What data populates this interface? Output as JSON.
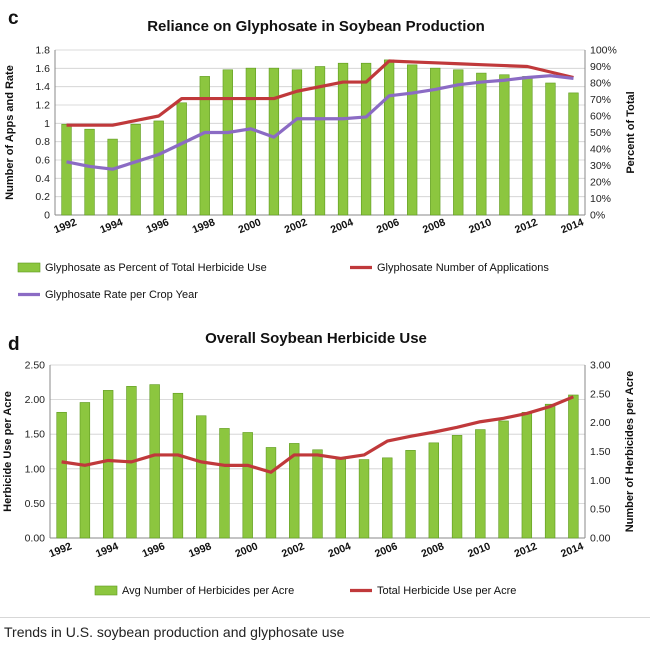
{
  "caption": "Trends in U.S. soybean production and glyphosate use",
  "colors": {
    "bar": "#8cc63f",
    "bar_edge": "#5e9a1e",
    "red_line": "#c0393b",
    "purple_line": "#8b6bc4",
    "grid": "#cfcfcf"
  },
  "chart_data": [
    {
      "panel_letter": "c",
      "type": "bar",
      "title": "Reliance on Glyphosate in Soybean Production",
      "ylabel": "Number of Apps and Rate",
      "y2label": "Percent  of Total",
      "ylim": [
        0,
        1.8
      ],
      "y2lim": [
        0,
        100
      ],
      "yticks": [
        "0",
        "0.2",
        "0.4",
        "0.6",
        "0.8",
        "1",
        "1.2",
        "1.4",
        "1.6",
        "1.8"
      ],
      "y2ticks": [
        "0%",
        "10%",
        "20%",
        "30%",
        "40%",
        "50%",
        "60%",
        "70%",
        "80%",
        "90%",
        "100%"
      ],
      "xticks": [
        "1992",
        "1994",
        "1996",
        "1998",
        "2000",
        "2002",
        "2004",
        "2006",
        "2008",
        "2010",
        "2012",
        "2014"
      ],
      "x": [
        1992,
        1993,
        1994,
        1995,
        1996,
        1997,
        1998,
        1999,
        2000,
        2001,
        2002,
        2003,
        2004,
        2005,
        2006,
        2007,
        2008,
        2009,
        2010,
        2011,
        2012,
        2013,
        2014
      ],
      "grid": true,
      "legend_position": "bottom",
      "series": [
        {
          "name": "Glyphosate as Percent of Total Herbicide Use",
          "kind": "bar",
          "axis": "right",
          "values": [
            55,
            52,
            46,
            55,
            57,
            68,
            84,
            88,
            89,
            89,
            88,
            90,
            92,
            92,
            94,
            91,
            89,
            88,
            86,
            85,
            84,
            80,
            74
          ]
        },
        {
          "name": "Glyphosate Number of Applications",
          "kind": "line",
          "axis": "left",
          "values": [
            0.98,
            0.98,
            0.98,
            1.03,
            1.08,
            1.27,
            1.27,
            1.27,
            1.27,
            1.27,
            1.35,
            1.4,
            1.45,
            1.45,
            1.68,
            1.67,
            1.66,
            1.65,
            1.64,
            1.63,
            1.62,
            1.56,
            1.5
          ]
        },
        {
          "name": "Glyphosate Rate per Crop Year",
          "kind": "line",
          "axis": "left",
          "values": [
            0.58,
            0.53,
            0.5,
            0.58,
            0.66,
            0.78,
            0.9,
            0.9,
            0.94,
            0.85,
            1.05,
            1.05,
            1.05,
            1.07,
            1.3,
            1.33,
            1.37,
            1.42,
            1.45,
            1.47,
            1.5,
            1.52,
            1.49
          ]
        }
      ]
    },
    {
      "panel_letter": "d",
      "type": "bar",
      "title": "Overall Soybean Herbicide Use",
      "ylabel": "Herbicide Use per Acre",
      "y2label": "Number of Herbicides per Acre",
      "ylim": [
        0,
        2.5
      ],
      "y2lim": [
        0,
        3.0
      ],
      "yticks": [
        "0.00",
        "0.50",
        "1.00",
        "1.50",
        "2.00",
        "2.50"
      ],
      "y2ticks": [
        "0.00",
        "0.50",
        "1.00",
        "1.50",
        "2.00",
        "2.50",
        "3.00"
      ],
      "xticks": [
        "1992",
        "1994",
        "1996",
        "1998",
        "2000",
        "2002",
        "2004",
        "2006",
        "2008",
        "2010",
        "2012",
        "2014"
      ],
      "x": [
        1992,
        1993,
        1994,
        1995,
        1996,
        1997,
        1998,
        1999,
        2000,
        2001,
        2002,
        2003,
        2004,
        2005,
        2006,
        2007,
        2008,
        2009,
        2010,
        2011,
        2012,
        2013,
        2014
      ],
      "grid": true,
      "legend_position": "bottom",
      "series": [
        {
          "name": "Avg Number of Herbicides per Acre",
          "kind": "bar",
          "axis": "right",
          "values": [
            2.18,
            2.35,
            2.56,
            2.63,
            2.66,
            2.51,
            2.12,
            1.9,
            1.83,
            1.57,
            1.64,
            1.53,
            1.38,
            1.36,
            1.39,
            1.52,
            1.65,
            1.78,
            1.88,
            2.03,
            2.18,
            2.32,
            2.48
          ]
        },
        {
          "name": "Total Herbicide Use per Acre",
          "kind": "line",
          "axis": "left",
          "values": [
            1.1,
            1.05,
            1.12,
            1.1,
            1.2,
            1.2,
            1.1,
            1.05,
            1.05,
            0.95,
            1.2,
            1.2,
            1.15,
            1.2,
            1.4,
            1.47,
            1.53,
            1.6,
            1.68,
            1.73,
            1.8,
            1.9,
            2.04
          ]
        }
      ]
    }
  ]
}
